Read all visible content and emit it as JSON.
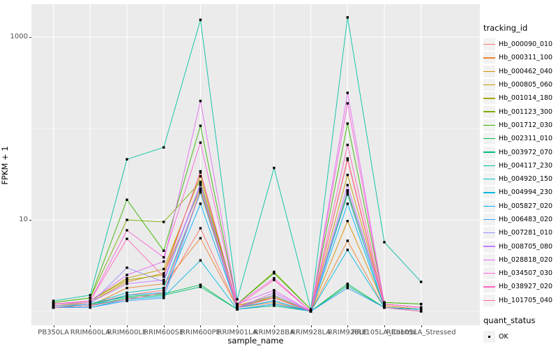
{
  "chart_data": {
    "type": "line",
    "title": "",
    "xlabel": "sample_name",
    "ylabel": "FPKM + 1",
    "y_scale": "log10",
    "y_breaks": [
      10,
      1000
    ],
    "y_break_labels": [
      "10",
      "1000"
    ],
    "y_minor_breaks": [
      1,
      100
    ],
    "grid": true,
    "legend_position": "right",
    "legend_title": "tracking_id",
    "point_legend": {
      "title": "quant_status",
      "items": [
        {
          "label": "OK",
          "shape": "square",
          "color": "#000000"
        }
      ]
    },
    "x_categories": [
      "PB350LA",
      "RRIM600LA",
      "RRIM600LE",
      "RRIM600SE",
      "RRIM600PE",
      "RRIM901LA",
      "RRIM928BA",
      "RRIM928LA",
      "RRIM928LE",
      "RRII105LA_Control",
      "RRII105LA_Stressed"
    ],
    "series": [
      {
        "name": "Hb_000090_010",
        "color": "#F8766D",
        "values": [
          1.15,
          1.2,
          1.5,
          1.7,
          8.1,
          1.1,
          1.3,
          1.0,
          47,
          1.15,
          1.05
        ]
      },
      {
        "name": "Hb_000311_100",
        "color": "#EA8331",
        "values": [
          1.1,
          1.15,
          1.8,
          2.0,
          6.3,
          1.1,
          1.25,
          1.0,
          5.9,
          1.1,
          1.05
        ]
      },
      {
        "name": "Hb_000462_040",
        "color": "#D89000",
        "values": [
          1.15,
          1.25,
          2.1,
          2.6,
          33,
          1.15,
          1.4,
          1.0,
          9.7,
          1.15,
          1.05
        ]
      },
      {
        "name": "Hb_000805_060",
        "color": "#C09B00",
        "values": [
          1.2,
          1.3,
          2.3,
          2.9,
          30,
          1.15,
          1.5,
          1.0,
          31,
          1.2,
          1.1
        ]
      },
      {
        "name": "Hb_001014_180",
        "color": "#A3A500",
        "values": [
          1.2,
          1.3,
          2.2,
          2.5,
          22,
          1.1,
          1.45,
          1.0,
          21,
          1.2,
          1.1
        ]
      },
      {
        "name": "Hb_001123_300",
        "color": "#7CAE00",
        "values": [
          1.25,
          1.4,
          10.0,
          9.5,
          26,
          1.2,
          2.7,
          1.05,
          20,
          1.25,
          1.2
        ]
      },
      {
        "name": "Hb_001712_030",
        "color": "#39B600",
        "values": [
          1.25,
          1.4,
          16.6,
          4.6,
          107,
          1.2,
          2.6,
          1.05,
          113,
          1.25,
          1.2
        ]
      },
      {
        "name": "Hb_002311_010",
        "color": "#00BB4E",
        "values": [
          1.1,
          1.2,
          1.45,
          1.55,
          1.95,
          1.05,
          1.2,
          1.0,
          2.0,
          1.1,
          1.05
        ]
      },
      {
        "name": "Hb_003972_070",
        "color": "#00BF7D",
        "values": [
          1.1,
          1.15,
          1.4,
          1.5,
          1.85,
          1.05,
          1.15,
          1.0,
          1.9,
          1.1,
          1.05
        ]
      },
      {
        "name": "Hb_004117_230",
        "color": "#00C1A3",
        "values": [
          1.3,
          1.5,
          46,
          62,
          1540,
          1.35,
          37,
          1.05,
          1640,
          5.7,
          2.1
        ]
      },
      {
        "name": "Hb_004920_150",
        "color": "#00BFC4",
        "values": [
          1.1,
          1.2,
          1.6,
          1.8,
          20,
          1.1,
          1.3,
          1.0,
          19,
          1.1,
          1.05
        ]
      },
      {
        "name": "Hb_004994_230",
        "color": "#00BAE0",
        "values": [
          1.1,
          1.1,
          1.35,
          1.45,
          3.6,
          1.05,
          1.2,
          1.0,
          4.7,
          1.1,
          1.0
        ]
      },
      {
        "name": "Hb_005827_020",
        "color": "#00B0F6",
        "values": [
          1.1,
          1.15,
          1.5,
          1.6,
          15,
          1.1,
          1.3,
          1.0,
          15,
          1.1,
          1.05
        ]
      },
      {
        "name": "Hb_006483_020",
        "color": "#35A2FF",
        "values": [
          1.1,
          1.1,
          1.3,
          1.4,
          21,
          1.05,
          1.2,
          1.0,
          1.8,
          1.1,
          1.0
        ]
      },
      {
        "name": "Hb_007281_010",
        "color": "#9590FF",
        "values": [
          1.15,
          1.2,
          3.0,
          2.1,
          24,
          1.1,
          1.5,
          1.0,
          21,
          1.2,
          1.1
        ]
      },
      {
        "name": "Hb_008705_080",
        "color": "#C77CFF",
        "values": [
          1.2,
          1.25,
          2.0,
          2.2,
          25,
          1.1,
          1.6,
          1.0,
          24,
          1.2,
          1.1
        ]
      },
      {
        "name": "Hb_028818_020",
        "color": "#E76BF3",
        "values": [
          1.2,
          1.3,
          2.5,
          3.5,
          200,
          1.2,
          1.7,
          1.0,
          245,
          1.2,
          1.1
        ]
      },
      {
        "name": "Hb_034507_030",
        "color": "#FA62DB",
        "values": [
          1.2,
          1.3,
          7.7,
          3.9,
          70,
          1.2,
          2.3,
          1.0,
          188,
          1.2,
          1.1
        ]
      },
      {
        "name": "Hb_038927_020",
        "color": "#FF62BC",
        "values": [
          1.2,
          1.3,
          6.2,
          2.4,
          34,
          1.15,
          2.2,
          1.0,
          66,
          1.2,
          1.1
        ]
      },
      {
        "name": "Hb_101705_040",
        "color": "#FF6A98",
        "values": [
          1.1,
          1.15,
          1.35,
          1.6,
          21,
          1.1,
          1.4,
          1.0,
          45,
          1.1,
          1.0
        ]
      }
    ]
  },
  "ui": {
    "panel_bg": "#EBEBEB",
    "grid_color": "#FFFFFF",
    "tick_color": "#333333",
    "tick_label_color": "#4D4D4D",
    "legend_key_bg": "#F2F2F2",
    "point_color": "#000000"
  }
}
